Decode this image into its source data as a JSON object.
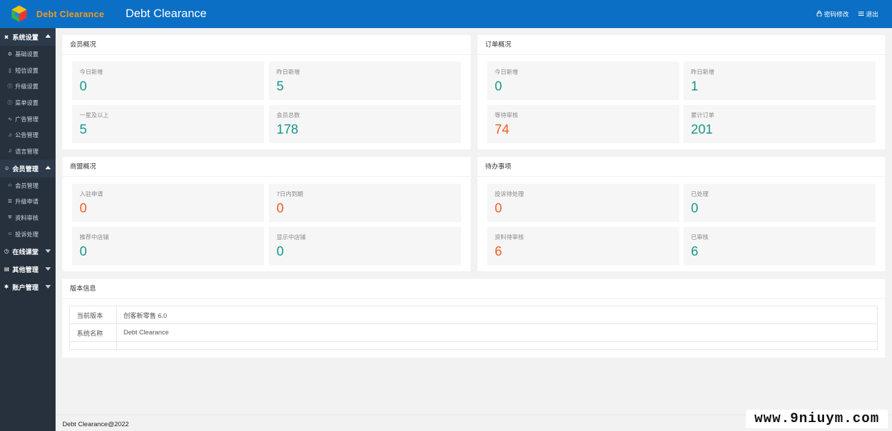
{
  "header": {
    "logo_text": "Debt Clearance",
    "title": "Debt Clearance",
    "links": [
      {
        "icon": "lock-icon",
        "label": "密码修改"
      },
      {
        "icon": "menu-icon",
        "label": "退出"
      }
    ]
  },
  "sidebar": {
    "groups": [
      {
        "label": "系统设置",
        "icon": "settings-icon",
        "expanded": true,
        "items": [
          "基础设置",
          "短信设置",
          "升级设置",
          "菜单设置",
          "广告管理",
          "公告管理",
          "语言管理"
        ]
      },
      {
        "label": "会员管理",
        "icon": "user-icon",
        "expanded": true,
        "items": [
          "会员管理",
          "升级申请",
          "资料审核",
          "投诉处理"
        ]
      },
      {
        "label": "在线课堂",
        "icon": "clock-icon",
        "expanded": false,
        "items": []
      },
      {
        "label": "其他管理",
        "icon": "doc-icon",
        "expanded": false,
        "items": []
      },
      {
        "label": "账户管理",
        "icon": "gear-icon",
        "expanded": false,
        "items": []
      }
    ]
  },
  "panels": {
    "members": {
      "title": "会员概况",
      "stats": [
        {
          "label": "今日新增",
          "value": "0",
          "color": "#159688"
        },
        {
          "label": "昨日新增",
          "value": "5",
          "color": "#159688"
        },
        {
          "label": "一星及以上",
          "value": "5",
          "color": "#159688"
        },
        {
          "label": "会员总数",
          "value": "178",
          "color": "#159688"
        }
      ]
    },
    "orders": {
      "title": "订单概况",
      "stats": [
        {
          "label": "今日新增",
          "value": "0",
          "color": "#159688"
        },
        {
          "label": "昨日新增",
          "value": "1",
          "color": "#159688"
        },
        {
          "label": "等待审核",
          "value": "74",
          "color": "#f15a24"
        },
        {
          "label": "累计订单",
          "value": "201",
          "color": "#159688"
        }
      ]
    },
    "merchants": {
      "title": "商盟概况",
      "stats": [
        {
          "label": "入驻申请",
          "value": "0",
          "color": "#f15a24"
        },
        {
          "label": "7日内到期",
          "value": "0",
          "color": "#f15a24"
        },
        {
          "label": "推荐中店铺",
          "value": "0",
          "color": "#159688"
        },
        {
          "label": "显示中店铺",
          "value": "0",
          "color": "#159688"
        }
      ]
    },
    "todo": {
      "title": "待办事项",
      "stats": [
        {
          "label": "投诉待处理",
          "value": "0",
          "color": "#f15a24"
        },
        {
          "label": "已处理",
          "value": "0",
          "color": "#159688"
        },
        {
          "label": "资料待审核",
          "value": "6",
          "color": "#f15a24"
        },
        {
          "label": "已审核",
          "value": "6",
          "color": "#159688"
        }
      ]
    }
  },
  "version": {
    "title": "版本信息",
    "rows": [
      {
        "key": "当前版本",
        "value": "创客新零售 6.0"
      },
      {
        "key": "系统名称",
        "value": "Debt Clearance"
      },
      {
        "key": "",
        "value": ""
      }
    ]
  },
  "footer": {
    "text": "Debt Clearance@2022"
  },
  "watermark": {
    "text": "www.9niuym.com"
  }
}
